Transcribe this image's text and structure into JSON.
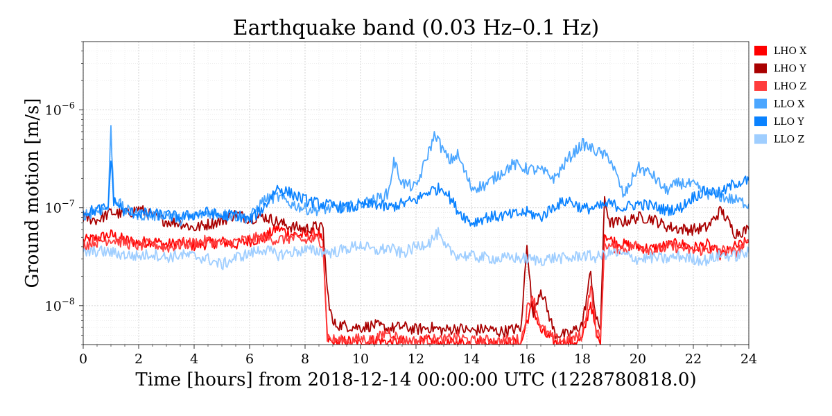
{
  "chart_data": {
    "type": "line",
    "title": "Earthquake band (0.03 Hz–0.1 Hz)",
    "xlabel": "Time [hours] from 2018-12-14 00:00:00 UTC (1228780818.0)",
    "ylabel": "Ground motion [m/s]",
    "xlim": [
      0,
      24
    ],
    "ylim": [
      4e-09,
      5e-06
    ],
    "yscale": "log",
    "grid": true,
    "legend_position": "outside-right-top",
    "x_ticks": [
      0,
      2,
      4,
      6,
      8,
      10,
      12,
      14,
      16,
      18,
      20,
      22,
      24
    ],
    "x_tick_labels": [
      "0",
      "2",
      "4",
      "6",
      "8",
      "10",
      "12",
      "14",
      "16",
      "18",
      "20",
      "22",
      "24"
    ],
    "y_ticks": [
      1e-08,
      1e-07,
      1e-06
    ],
    "y_tick_labels": [
      {
        "base": "10",
        "exp": "−8"
      },
      {
        "base": "10",
        "exp": "−7"
      },
      {
        "base": "10",
        "exp": "−6"
      }
    ],
    "series": [
      {
        "name": "LHO X",
        "color": "#ff0000",
        "x": [
          0,
          0.5,
          1,
          1.5,
          2,
          2.5,
          3,
          3.5,
          4,
          4.5,
          5,
          5.5,
          6,
          6.5,
          7,
          7.5,
          8,
          8.5,
          8.65,
          8.8,
          9,
          9.5,
          10,
          10.5,
          11,
          11.5,
          12,
          12.5,
          13,
          13.5,
          14,
          14.5,
          15,
          15.5,
          15.8,
          16,
          16.2,
          16.5,
          17,
          17.5,
          18,
          18.3,
          18.5,
          18.65,
          18.8,
          19,
          19.5,
          20,
          20.5,
          21,
          21.5,
          22,
          22.5,
          23,
          23.5,
          24
        ],
        "y": [
          4.6e-08,
          4.9e-08,
          5.3e-08,
          4.7e-08,
          4.4e-08,
          4.6e-08,
          4.2e-08,
          4.4e-08,
          4.1e-08,
          4.3e-08,
          4.5e-08,
          4.2e-08,
          4.6e-08,
          4.9e-08,
          6.2e-08,
          5.4e-08,
          5.2e-08,
          5.6e-08,
          4.1e-08,
          4.6e-09,
          4.1e-09,
          4.4e-09,
          4e-09,
          4.5e-09,
          4.2e-09,
          4.3e-09,
          4.1e-09,
          4.4e-09,
          4e-09,
          4.2e-09,
          4.1e-09,
          4.3e-09,
          4e-09,
          4.2e-09,
          4.1e-09,
          7e-09,
          1e-08,
          5.5e-09,
          4.2e-09,
          4.1e-09,
          4.5e-09,
          1.1e-08,
          5e-09,
          4e-09,
          5.5e-08,
          4.7e-08,
          4.2e-08,
          4e-08,
          3.8e-08,
          4.1e-08,
          4.3e-08,
          3.9e-08,
          4.2e-08,
          3.2e-08,
          4e-08,
          4.5e-08
        ]
      },
      {
        "name": "LHO Y",
        "color": "#a90000",
        "x": [
          0,
          0.5,
          1,
          1.5,
          2,
          2.5,
          3,
          3.5,
          4,
          4.5,
          5,
          5.5,
          6,
          6.5,
          7,
          7.5,
          8,
          8.5,
          8.65,
          8.8,
          9,
          9.5,
          10,
          10.5,
          11,
          11.5,
          12,
          12.5,
          13,
          13.5,
          14,
          14.5,
          15,
          15.5,
          15.8,
          16,
          16.2,
          16.5,
          17,
          17.5,
          18,
          18.3,
          18.5,
          18.65,
          18.8,
          19,
          19.5,
          20,
          20.5,
          21,
          21.5,
          22,
          22.5,
          23,
          23.5,
          24
        ],
        "y": [
          8e-08,
          7.5e-08,
          9e-08,
          8.5e-08,
          9.8e-08,
          8.2e-08,
          7.3e-08,
          7e-08,
          6.2e-08,
          6.8e-08,
          7.4e-08,
          8.6e-08,
          7.8e-08,
          8.2e-08,
          7.2e-08,
          6.4e-08,
          6.1e-08,
          6.5e-08,
          6e-08,
          1.4e-08,
          6.5e-09,
          6.2e-09,
          6e-09,
          6.3e-09,
          5.8e-09,
          6.1e-09,
          5.7e-09,
          6e-09,
          5.6e-09,
          5.9e-09,
          5.5e-09,
          5.8e-09,
          5.4e-09,
          5.7e-09,
          6e-09,
          4.6e-08,
          8e-09,
          1.5e-08,
          5.2e-09,
          5e-09,
          6.5e-09,
          2.2e-08,
          7e-09,
          6e-09,
          1.2e-07,
          7e-08,
          7.2e-08,
          8e-08,
          7.8e-08,
          6.5e-08,
          6.1e-08,
          6e-08,
          6.3e-08,
          9.5e-08,
          5.5e-08,
          6e-08
        ]
      },
      {
        "name": "LHO Z",
        "color": "#ff3c3c",
        "x": [
          0,
          0.5,
          1,
          1.5,
          2,
          2.5,
          3,
          3.5,
          4,
          4.5,
          5,
          5.5,
          6,
          6.5,
          7,
          7.5,
          8,
          8.5,
          8.65,
          8.8,
          9,
          9.5,
          10,
          10.5,
          11,
          11.5,
          12,
          12.5,
          13,
          13.5,
          14,
          14.5,
          15,
          15.5,
          15.8,
          16,
          16.2,
          16.5,
          17,
          17.5,
          18,
          18.3,
          18.5,
          18.65,
          18.8,
          19,
          19.5,
          20,
          20.5,
          21,
          21.5,
          22,
          22.5,
          23,
          23.5,
          24
        ],
        "y": [
          4.2e-08,
          4.5e-08,
          4.8e-08,
          4.4e-08,
          4.1e-08,
          4.3e-08,
          3.9e-08,
          4.2e-08,
          4.4e-08,
          4.6e-08,
          4.3e-08,
          4.5e-08,
          4.8e-08,
          5e-08,
          4.7e-08,
          4.9e-08,
          4.6e-08,
          4.8e-08,
          4.2e-08,
          4.8e-09,
          4.5e-09,
          4.3e-09,
          4.6e-09,
          4.4e-09,
          5.5e-09,
          4.4e-09,
          4.3e-09,
          4.5e-09,
          4.4e-09,
          4.8e-09,
          4.3e-09,
          4.4e-09,
          4.3e-09,
          4.5e-09,
          4.4e-09,
          9e-09,
          1.3e-08,
          6e-09,
          4.5e-09,
          4.4e-09,
          5e-09,
          1.6e-08,
          5.5e-09,
          4.5e-09,
          4.4e-08,
          4e-08,
          3.8e-08,
          4.2e-08,
          3.7e-08,
          3.9e-08,
          4e-08,
          3.6e-08,
          3.8e-08,
          3.7e-08,
          3.5e-08,
          4.4e-08
        ]
      },
      {
        "name": "LLO X",
        "color": "#4ba6ff",
        "x": [
          0,
          0.5,
          0.9,
          1.0,
          1.1,
          1.5,
          2,
          2.5,
          3,
          3.5,
          4,
          4.5,
          5,
          5.5,
          6,
          6.5,
          7,
          7.5,
          8,
          8.5,
          9,
          9.5,
          10,
          10.5,
          11,
          11.2,
          11.5,
          12,
          12.3,
          12.7,
          12.9,
          13.2,
          13.5,
          14,
          14.5,
          15,
          15.5,
          16,
          16.5,
          17,
          17.5,
          18,
          18.5,
          19,
          19.5,
          20,
          20.5,
          21,
          21.5,
          22,
          22.5,
          23,
          23.5,
          24
        ],
        "y": [
          8.5e-08,
          9.2e-08,
          1e-07,
          6.5e-07,
          1.3e-07,
          9.5e-08,
          8.6e-08,
          8.2e-08,
          8.8e-08,
          7.5e-08,
          8.2e-08,
          9e-08,
          8.6e-08,
          8.2e-08,
          7.8e-08,
          1.2e-07,
          1.3e-07,
          1.1e-07,
          9.8e-08,
          9.5e-08,
          1e-07,
          1e-07,
          1.1e-07,
          1.2e-07,
          1.4e-07,
          3e-07,
          1.8e-07,
          1.6e-07,
          2.8e-07,
          5.8e-07,
          4.2e-07,
          3e-07,
          3.5e-07,
          1.6e-07,
          1.7e-07,
          2.2e-07,
          2.8e-07,
          2.5e-07,
          2.4e-07,
          2e-07,
          3.2e-07,
          4.5e-07,
          3.8e-07,
          3.2e-07,
          1.3e-07,
          2.6e-07,
          2.2e-07,
          1.5e-07,
          1.8e-07,
          1.7e-07,
          1.4e-07,
          1.3e-07,
          1.2e-07,
          1.1e-07
        ]
      },
      {
        "name": "LLO Y",
        "color": "#0a82ff",
        "x": [
          0,
          0.5,
          0.9,
          1.0,
          1.1,
          1.5,
          2,
          2.5,
          3,
          3.5,
          4,
          4.5,
          5,
          5.5,
          6,
          6.5,
          7,
          7.5,
          8,
          8.5,
          9,
          9.5,
          10,
          10.5,
          11,
          11.5,
          12,
          12.5,
          13,
          13.5,
          14,
          14.5,
          15,
          15.5,
          16,
          16.5,
          17,
          17.5,
          18,
          18.5,
          19,
          19.5,
          20,
          20.5,
          21,
          21.5,
          22,
          22.5,
          23,
          23.5,
          24
        ],
        "y": [
          9e-08,
          9.5e-08,
          1e-07,
          3.3e-07,
          1.2e-07,
          9e-08,
          8.8e-08,
          8.6e-08,
          8.4e-08,
          8e-08,
          8.5e-08,
          9e-08,
          8.2e-08,
          8.6e-08,
          7.5e-08,
          1e-07,
          1.6e-07,
          1.4e-07,
          1.2e-07,
          1.1e-07,
          1.05e-07,
          1e-07,
          1.05e-07,
          1.1e-07,
          1e-07,
          1.1e-07,
          1.2e-07,
          1.5e-07,
          1.6e-07,
          9.5e-08,
          7e-08,
          8e-08,
          8.2e-08,
          8.5e-08,
          9e-08,
          8e-08,
          1.05e-07,
          1.2e-07,
          9.8e-08,
          1e-07,
          1.1e-07,
          1e-07,
          1.1e-07,
          1.05e-07,
          9.5e-08,
          9.8e-08,
          1.3e-07,
          1.5e-07,
          1.4e-07,
          1.8e-07,
          1.9e-07
        ]
      },
      {
        "name": "LLO Z",
        "color": "#9fceff",
        "x": [
          0,
          0.5,
          1,
          1.5,
          2,
          2.5,
          3,
          3.5,
          4,
          4.5,
          5,
          5.5,
          6,
          6.5,
          7,
          7.5,
          8,
          8.5,
          9,
          9.5,
          10,
          10.5,
          11,
          11.5,
          12,
          12.5,
          12.8,
          13,
          13.5,
          14,
          14.5,
          15,
          15.5,
          16,
          16.5,
          17,
          17.5,
          18,
          18.5,
          19,
          19.5,
          20,
          20.5,
          21,
          21.5,
          22,
          22.5,
          23,
          23.5,
          24
        ],
        "y": [
          3.4e-08,
          3.6e-08,
          3.5e-08,
          3.3e-08,
          3.2e-08,
          3.4e-08,
          3.1e-08,
          3.3e-08,
          3.2e-08,
          3e-08,
          2.6e-08,
          3.1e-08,
          3.4e-08,
          3.8e-08,
          3.3e-08,
          3.5e-08,
          3.7e-08,
          3.6e-08,
          3.5e-08,
          3.8e-08,
          4.2e-08,
          3.6e-08,
          3.9e-08,
          3.4e-08,
          4e-08,
          4.5e-08,
          5.5e-08,
          4e-08,
          3.3e-08,
          3.2e-08,
          3.1e-08,
          3e-08,
          3.1e-08,
          3e-08,
          2.9e-08,
          3.1e-08,
          3e-08,
          3.3e-08,
          3.1e-08,
          3.5e-08,
          3.3e-08,
          3e-08,
          3.1e-08,
          3e-08,
          3.2e-08,
          3e-08,
          2.9e-08,
          3.3e-08,
          3.2e-08,
          3.5e-08
        ]
      }
    ]
  }
}
